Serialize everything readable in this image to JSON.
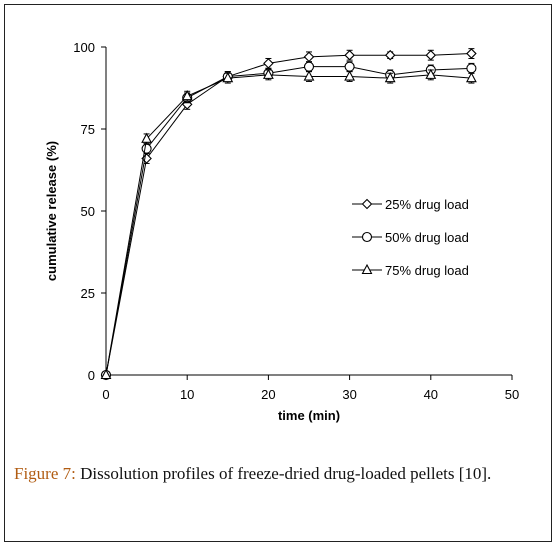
{
  "chart_data": {
    "type": "line",
    "xlabel": "time (min)",
    "ylabel": "cumulative release (%)",
    "xlim": [
      0,
      50
    ],
    "ylim": [
      0,
      100
    ],
    "xticks": [
      0,
      10,
      20,
      30,
      40,
      50
    ],
    "yticks": [
      0,
      25,
      50,
      75,
      100
    ],
    "grid": false,
    "legend_position": "center-right",
    "series": [
      {
        "name": "25% drug load",
        "marker": "diamond",
        "x": [
          0,
          5,
          10,
          15,
          20,
          25,
          30,
          35,
          40,
          45
        ],
        "y": [
          0,
          66,
          82.5,
          91,
          95,
          97,
          97.5,
          97.5,
          97.5,
          98
        ],
        "err": [
          0,
          1.5,
          1.5,
          1.5,
          1.5,
          1.5,
          1.5,
          1.0,
          1.5,
          1.5
        ]
      },
      {
        "name": "50% drug load",
        "marker": "circle",
        "x": [
          0,
          5,
          10,
          15,
          20,
          25,
          30,
          35,
          40,
          45
        ],
        "y": [
          0,
          69,
          84.5,
          91,
          92,
          94,
          94,
          91.5,
          93,
          93.5
        ],
        "err": [
          0,
          1.5,
          1.5,
          1.5,
          1.5,
          1.5,
          1.5,
          1.5,
          1.5,
          1.5
        ]
      },
      {
        "name": "75% drug load",
        "marker": "triangle",
        "x": [
          0,
          5,
          10,
          15,
          20,
          25,
          30,
          35,
          40,
          45
        ],
        "y": [
          0,
          72,
          85,
          90.5,
          91.5,
          91,
          91,
          90.5,
          91.5,
          90.5
        ],
        "err": [
          0,
          1.5,
          1.5,
          1.5,
          1.5,
          1.5,
          1.5,
          1.5,
          1.5,
          1.5
        ]
      }
    ]
  },
  "caption": {
    "label": "Figure 7:",
    "text": " Dissolution profiles of freeze-dried drug-loaded pellets [10]."
  },
  "colors": {
    "series_line": "#000000",
    "marker_fill": "#ffffff",
    "caption_label": "#b15c12"
  }
}
